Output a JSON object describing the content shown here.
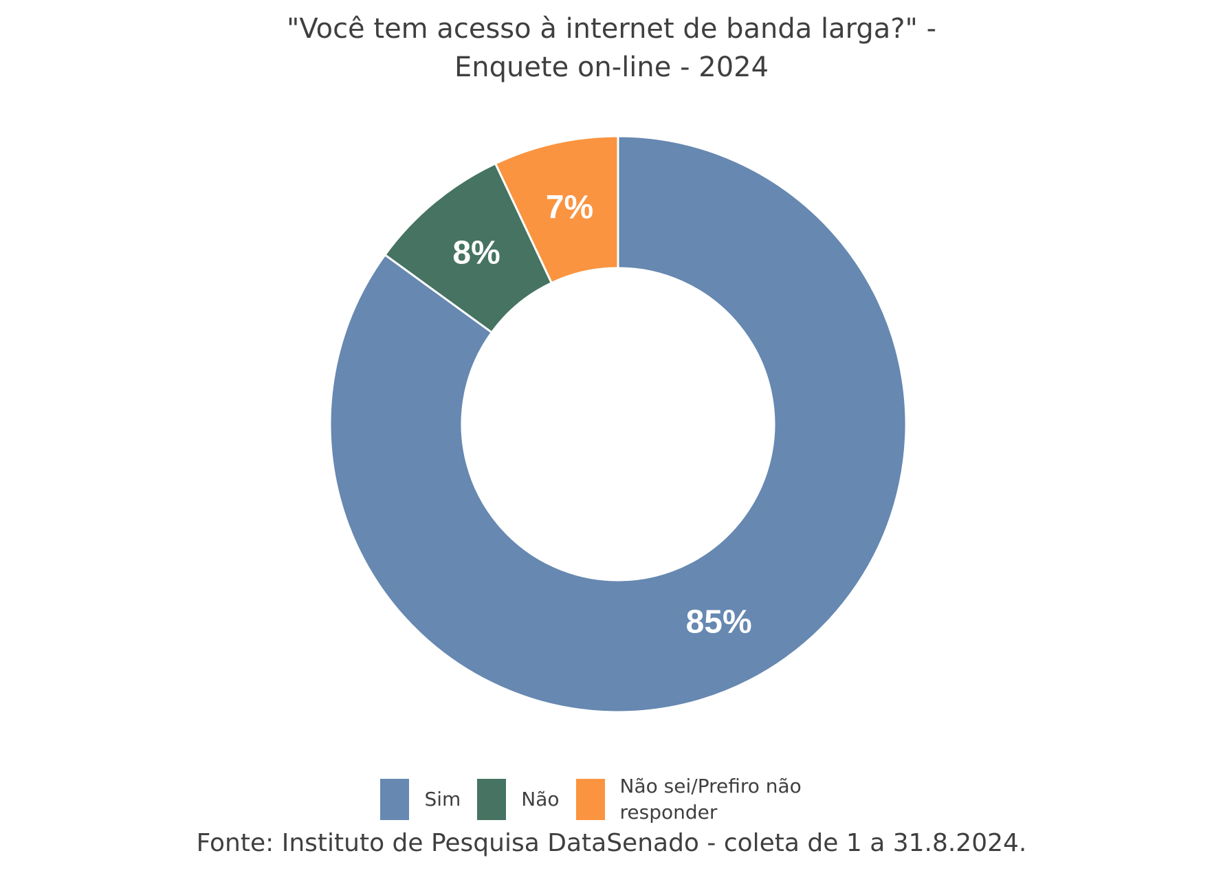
{
  "chart_data": {
    "type": "pie",
    "donut": true,
    "title_lines": [
      "\"Você tem acesso à internet de banda larga?\" -",
      "Enquete on-line - 2024"
    ],
    "categories": [
      "Sim",
      "Não",
      "Não sei/Prefiro não responder"
    ],
    "values": [
      85,
      8,
      7
    ],
    "data_labels": [
      "85%",
      "8%",
      "7%"
    ],
    "colors": [
      "#6688b1",
      "#467362",
      "#fa9440"
    ],
    "legend_position": "bottom",
    "source": "Fonte: Instituto de Pesquisa DataSenado - coleta de 1 a 31.8.2024."
  }
}
